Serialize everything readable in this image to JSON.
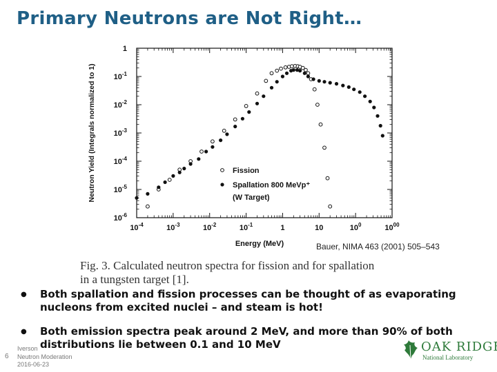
{
  "slide": {
    "title": "Primary Neutrons are Not Right…",
    "citation": "Bauer, NIMA 463 (2001) 505–543",
    "caption_line1": "Fig. 3.  Calculated neutron spectra for fission and for spallation",
    "caption_line2": "in a tungsten target [1].",
    "bullets": [
      "Both spallation and fission processes can be thought of as evaporating nucleons from excited nuclei – and steam is hot!",
      "Both emission spectra peak around 2 MeV, and more than 90% of both distributions lie between 0.1 and 10 MeV"
    ],
    "footer": {
      "author": "Iverson",
      "topic": "Neutron Moderation",
      "date": "2016-06-23",
      "page": "6"
    },
    "logo": {
      "line1": "OAK RIDGE",
      "line2": "National Laboratory",
      "color": "#2e7a3a"
    },
    "title_color": "#1f5f86"
  },
  "chart_data": {
    "type": "scatter",
    "xscale": "log",
    "yscale": "log",
    "xlim": [
      0.0001,
      1000
    ],
    "ylim": [
      1e-06,
      1
    ],
    "xlabel": "Energy (MeV)",
    "ylabel": "Neutron Yield (Integrals normalized to 1)",
    "x_ticks": [
      "10-4",
      "10-3",
      "10-2",
      "10-1",
      "1",
      "10",
      "100",
      "1000"
    ],
    "y_ticks": [
      "1",
      "10-1",
      "10-2",
      "10-3",
      "10-4",
      "10-5",
      "10-6"
    ],
    "legend_position": "bottom-right",
    "legend_lines": [
      "Fission",
      "Spallation 800 MeVp⁺",
      "(W Target)"
    ],
    "series": [
      {
        "name": "Fission",
        "marker": "open-circle",
        "points": [
          [
            0.0002,
            2.5e-06
          ],
          [
            0.0004,
            1e-05
          ],
          [
            0.0008,
            2.2e-05
          ],
          [
            0.0015,
            5e-05
          ],
          [
            0.003,
            0.0001
          ],
          [
            0.006,
            0.00022
          ],
          [
            0.012,
            0.0005
          ],
          [
            0.025,
            0.0012
          ],
          [
            0.05,
            0.003
          ],
          [
            0.1,
            0.009
          ],
          [
            0.2,
            0.025
          ],
          [
            0.35,
            0.07
          ],
          [
            0.5,
            0.13
          ],
          [
            0.7,
            0.16
          ],
          [
            0.9,
            0.19
          ],
          [
            1.2,
            0.21
          ],
          [
            1.5,
            0.22
          ],
          [
            1.8,
            0.23
          ],
          [
            2.2,
            0.235
          ],
          [
            2.6,
            0.23
          ],
          [
            3.0,
            0.22
          ],
          [
            3.6,
            0.2
          ],
          [
            4.3,
            0.17
          ],
          [
            5.0,
            0.13
          ],
          [
            6.0,
            0.08
          ],
          [
            7.5,
            0.035
          ],
          [
            9.0,
            0.01
          ],
          [
            11,
            0.002
          ],
          [
            14,
            0.0003
          ],
          [
            17,
            2.5e-05
          ],
          [
            20,
            2.5e-06
          ]
        ]
      },
      {
        "name": "Spallation 800 MeVp⁺ (W Target)",
        "marker": "filled-circle",
        "points": [
          [
            0.0001,
            5e-06
          ],
          [
            0.0002,
            7e-06
          ],
          [
            0.0004,
            1.2e-05
          ],
          [
            0.0006,
            1.8e-05
          ],
          [
            0.001,
            3e-05
          ],
          [
            0.0015,
            4e-05
          ],
          [
            0.002,
            5.5e-05
          ],
          [
            0.003,
            8e-05
          ],
          [
            0.005,
            0.00012
          ],
          [
            0.008,
            0.00022
          ],
          [
            0.012,
            0.00032
          ],
          [
            0.02,
            0.00055
          ],
          [
            0.03,
            0.0009
          ],
          [
            0.05,
            0.0017
          ],
          [
            0.08,
            0.0032
          ],
          [
            0.12,
            0.0055
          ],
          [
            0.2,
            0.011
          ],
          [
            0.3,
            0.02
          ],
          [
            0.5,
            0.04
          ],
          [
            0.7,
            0.065
          ],
          [
            1.0,
            0.1
          ],
          [
            1.3,
            0.13
          ],
          [
            1.7,
            0.16
          ],
          [
            2.0,
            0.17
          ],
          [
            2.5,
            0.17
          ],
          [
            3.0,
            0.16
          ],
          [
            4.0,
            0.13
          ],
          [
            5.0,
            0.1
          ],
          [
            7.0,
            0.08
          ],
          [
            10,
            0.07
          ],
          [
            14,
            0.065
          ],
          [
            20,
            0.06
          ],
          [
            30,
            0.055
          ],
          [
            45,
            0.048
          ],
          [
            65,
            0.042
          ],
          [
            90,
            0.035
          ],
          [
            130,
            0.028
          ],
          [
            180,
            0.02
          ],
          [
            250,
            0.013
          ],
          [
            320,
            0.008
          ],
          [
            400,
            0.004
          ],
          [
            480,
            0.0018
          ],
          [
            550,
            0.0008
          ]
        ]
      }
    ]
  }
}
